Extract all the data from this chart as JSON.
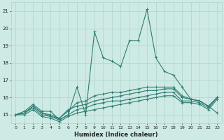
{
  "xlabel": "Humidex (Indice chaleur)",
  "background_color": "#ceeae4",
  "grid_color": "#b0d4ce",
  "line_color": "#2e7d72",
  "xlim": [
    -0.5,
    23.5
  ],
  "ylim": [
    14.5,
    21.5
  ],
  "yticks": [
    15,
    16,
    17,
    18,
    19,
    20,
    21
  ],
  "xticks": [
    0,
    1,
    2,
    3,
    4,
    5,
    6,
    7,
    8,
    9,
    10,
    11,
    12,
    13,
    14,
    15,
    16,
    17,
    18,
    19,
    20,
    21,
    22,
    23
  ],
  "line1_y": [
    15.0,
    15.2,
    15.6,
    15.2,
    15.2,
    14.7,
    15.0,
    16.6,
    15.0,
    19.8,
    18.3,
    18.1,
    17.8,
    19.3,
    19.3,
    21.1,
    18.3,
    17.5,
    17.3,
    16.6,
    15.9,
    15.8,
    15.5,
    15.1
  ],
  "line2_y": [
    15.0,
    15.1,
    15.5,
    15.1,
    15.0,
    14.8,
    15.2,
    15.7,
    15.8,
    16.1,
    16.2,
    16.3,
    16.3,
    16.4,
    16.5,
    16.6,
    16.6,
    16.6,
    16.6,
    16.1,
    15.9,
    15.8,
    15.5,
    16.0
  ],
  "line3_y": [
    15.0,
    15.1,
    15.5,
    15.1,
    14.9,
    14.8,
    15.3,
    15.5,
    15.6,
    15.8,
    15.9,
    16.0,
    16.1,
    16.2,
    16.3,
    16.4,
    16.4,
    16.5,
    16.5,
    16.0,
    15.9,
    15.8,
    15.5,
    16.0
  ],
  "line4_y": [
    15.0,
    15.1,
    15.4,
    15.0,
    14.9,
    14.7,
    15.0,
    15.3,
    15.4,
    15.6,
    15.7,
    15.8,
    15.8,
    15.9,
    16.0,
    16.1,
    16.2,
    16.3,
    16.3,
    15.8,
    15.8,
    15.7,
    15.4,
    16.0
  ],
  "line5_y": [
    15.0,
    15.0,
    15.3,
    14.9,
    14.8,
    14.6,
    14.9,
    15.1,
    15.2,
    15.3,
    15.4,
    15.5,
    15.6,
    15.7,
    15.8,
    15.9,
    16.0,
    16.1,
    16.1,
    15.7,
    15.7,
    15.6,
    15.3,
    15.9
  ]
}
